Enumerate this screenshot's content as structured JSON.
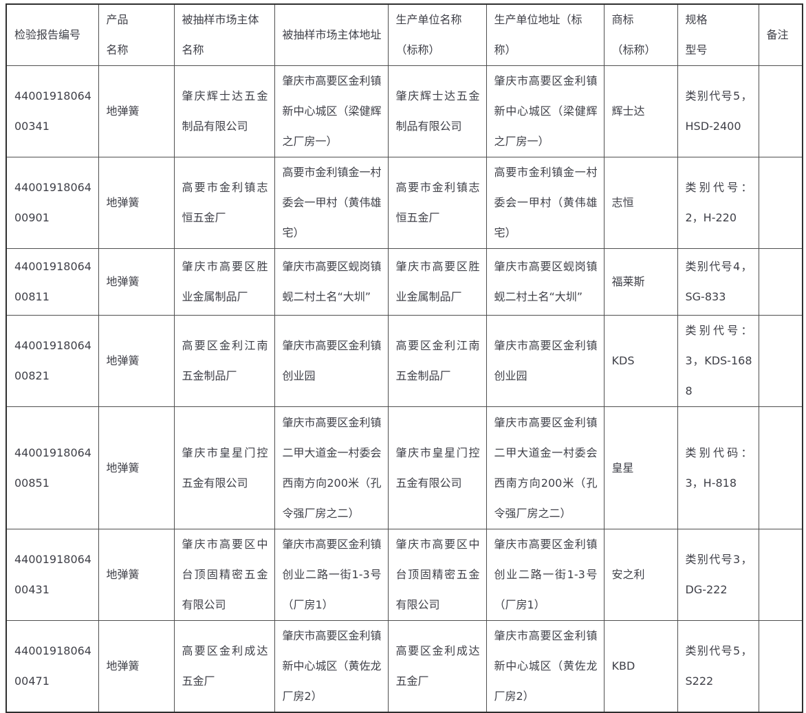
{
  "table": {
    "colors": {
      "text": "#3e3f47",
      "border": "#4e4e4e",
      "outer_border": "#2e2e2e",
      "background": "#ffffff"
    },
    "headers": [
      "检验报告编号",
      "产品\n名称",
      "被抽样市场主体\n名称",
      "被抽样市场主体地址",
      "生产单位名称\n（标称）",
      "生产单位地址（标\n称）",
      "商标\n（标称）",
      "规格\n型号",
      "备注"
    ],
    "rows": [
      [
        "4400191806400341",
        "地弹簧",
        "肇庆辉士达五金制品有限公司",
        "肇庆市高要区金利镇新中心城区（梁健辉之厂房一）",
        "肇庆辉士达五金制品有限公司",
        "肇庆市高要区金利镇新中心城区（梁健辉之厂房一）",
        "辉士达",
        "类别代号5，HSD-2400",
        ""
      ],
      [
        "4400191806400901",
        "地弹簧",
        "高要市金利镇志恒五金厂",
        "高要市金利镇金一村委会一甲村（黄伟雄宅）",
        "高要市金利镇志恒五金厂",
        "高要市金利镇金一村委会一甲村（黄伟雄宅）",
        "志恒",
        "类别代号：2，H-220",
        ""
      ],
      [
        "4400191806400811",
        "地弹簧",
        "肇庆市高要区胜业金属制品厂",
        "肇庆市高要区蚬岗镇蚬二村土名“大圳”",
        "肇庆市高要区胜业金属制品厂",
        "肇庆市高要区蚬岗镇蚬二村土名“大圳”",
        "福莱斯",
        "类别代号4，SG-833",
        ""
      ],
      [
        "4400191806400821",
        "地弹簧",
        "高要区金利江南五金制品厂",
        "肇庆市高要区金利镇创业园",
        "高要区金利江南五金制品厂",
        "肇庆市高要区金利镇创业园",
        "KDS",
        "类别代号：3，KDS-1688",
        ""
      ],
      [
        "4400191806400851",
        "地弹簧",
        "肇庆市皇星门控五金有限公司",
        "肇庆市高要区金利镇二甲大道金一村委会西南方向200米（孔令强厂房之二）",
        "肇庆市皇星门控五金有限公司",
        "肇庆市高要区金利镇二甲大道金一村委会西南方向200米（孔令强厂房之二）",
        "皇星",
        "类别代码：3，H-818",
        ""
      ],
      [
        "4400191806400431",
        "地弹簧",
        "肇庆市高要区中台顶固精密五金有限公司",
        "肇庆市高要区金利镇创业二路一街1-3号（厂房1）",
        "肇庆市高要区中台顶固精密五金有限公司",
        "肇庆市高要区金利镇创业二路一街1-3号（厂房1）",
        "安之利",
        "类别代号3，DG-222",
        ""
      ],
      [
        "4400191806400471",
        "地弹簧",
        "高要区金利成达五金厂",
        "肇庆市高要区金利镇新中心城区（黄佐龙厂房2）",
        "高要区金利成达五金厂",
        "肇庆市高要区金利镇新中心城区（黄佐龙厂房2）",
        "KBD",
        "类别代号5，S222",
        ""
      ]
    ]
  }
}
